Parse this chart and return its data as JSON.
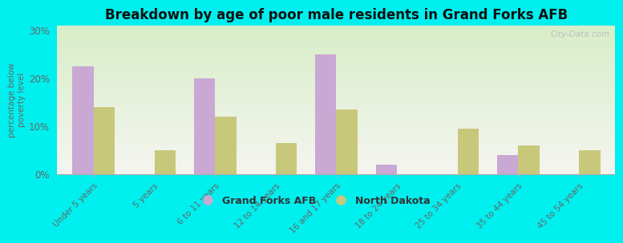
{
  "title": "Breakdown by age of poor male residents in Grand Forks AFB",
  "ylabel": "percentage below\npoverty level",
  "categories": [
    "Under 5 years",
    "5 years",
    "6 to 11 years",
    "12 to 14 years",
    "16 and 17 years",
    "18 to 24 years",
    "25 to 34 years",
    "35 to 44 years",
    "45 to 54 years"
  ],
  "gfafb_values": [
    22.5,
    0,
    20.0,
    0,
    25.0,
    2.0,
    0,
    4.0,
    0
  ],
  "nd_values": [
    14.0,
    5.0,
    12.0,
    6.5,
    13.5,
    0,
    9.5,
    6.0,
    5.0
  ],
  "gfafb_color": "#c9a8d4",
  "nd_color": "#c8c87a",
  "plot_bg_top": "#f5f5f0",
  "plot_bg_bottom": "#d8eec8",
  "outer_background": "#00efef",
  "ylim": [
    0,
    31
  ],
  "yticks": [
    0,
    10,
    20,
    30
  ],
  "ytick_labels": [
    "0%",
    "10%",
    "20%",
    "30%"
  ],
  "bar_width": 0.35,
  "watermark": "City-Data.com",
  "legend_gfafb": "Grand Forks AFB",
  "legend_nd": "North Dakota"
}
